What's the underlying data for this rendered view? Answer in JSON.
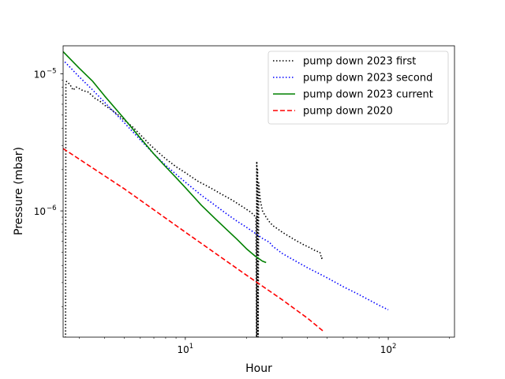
{
  "chart_data": {
    "type": "line",
    "title": "",
    "xlabel": "Hour",
    "ylabel": "Pressure (mbar)",
    "xscale": "log",
    "yscale": "log",
    "xlim": [
      2.5,
      212
    ],
    "ylim": [
      1.2e-07,
      1.6e-05
    ],
    "grid": false,
    "legend_position": "top-right",
    "x_ticks": [
      {
        "value": 10,
        "base": "10",
        "exp": "1"
      },
      {
        "value": 100,
        "base": "10",
        "exp": "2"
      }
    ],
    "y_ticks": [
      {
        "value": 1e-06,
        "base": "10",
        "exp": "−6"
      },
      {
        "value": 1e-05,
        "base": "10",
        "exp": "−5"
      }
    ],
    "series": [
      {
        "name": "pump down 2023 first",
        "color": "#000000",
        "style": "dotted",
        "x": [
          2.55,
          2.57,
          2.58,
          2.6,
          2.65,
          2.72,
          2.8,
          2.9,
          3.0,
          3.15,
          3.3,
          3.45,
          3.6,
          3.8,
          4.0,
          4.3,
          4.6,
          5.0,
          5.5,
          6.0,
          6.6,
          7.3,
          8.0,
          9.0,
          10.0,
          11.5,
          13.0,
          15.0,
          17.0,
          19.0,
          21.0,
          22.3,
          22.45,
          22.5,
          22.6,
          22.7,
          22.85,
          23.0,
          23.4,
          24.0,
          25.0,
          26.0,
          27.0,
          28.5,
          30.0,
          32.0,
          35.0,
          38.0,
          41.0,
          44.0,
          46.0,
          47.0,
          47.5
        ],
        "y": [
          1.2e-07,
          1.2e-07,
          8.5e-06,
          8.8e-06,
          8.6e-06,
          8.2e-06,
          7.6e-06,
          8e-06,
          7.8e-06,
          7.5e-06,
          7.4e-06,
          7e-06,
          6.6e-06,
          6.3e-06,
          5.9e-06,
          5.5e-06,
          5.1e-06,
          4.6e-06,
          4.1e-06,
          3.6e-06,
          3.1e-06,
          2.7e-06,
          2.4e-06,
          2.1e-06,
          1.9e-06,
          1.65e-06,
          1.5e-06,
          1.33e-06,
          1.2e-06,
          1.08e-06,
          9.8e-07,
          9e-07,
          1.2e-07,
          2.3e-06,
          1.2e-07,
          2e-06,
          1.2e-07,
          1.6e-06,
          1.2e-06,
          1e-06,
          9e-07,
          8.3e-07,
          7.8e-07,
          7.4e-07,
          7e-07,
          6.6e-07,
          6.1e-07,
          5.7e-07,
          5.4e-07,
          5.1e-07,
          5e-07,
          4.5e-07,
          4.6e-07
        ]
      },
      {
        "name": "pump down 2023 second",
        "color": "#0000ff",
        "style": "dotted",
        "x": [
          2.55,
          3.0,
          3.5,
          4.0,
          5.0,
          6.0,
          7.0,
          8.0,
          9.0,
          10.0,
          12.0,
          14.0,
          16.0,
          18.0,
          20.0,
          22.0,
          24.0,
          26.0,
          27.0,
          28.0,
          30.0,
          35.0,
          40.0,
          50.0,
          60.0,
          70.0,
          80.0,
          90.0,
          100.0
        ],
        "y": [
          1.22e-05,
          9.5e-06,
          7.6e-06,
          6.2e-06,
          4.4e-06,
          3.3e-06,
          2.6e-06,
          2.15e-06,
          1.85e-06,
          1.62e-06,
          1.3e-06,
          1.1e-06,
          9.5e-07,
          8.4e-07,
          7.6e-07,
          6.9e-07,
          6.3e-07,
          5.9e-07,
          5.5e-07,
          5.3e-07,
          4.9e-07,
          4.3e-07,
          3.85e-07,
          3.25e-07,
          2.8e-07,
          2.5e-07,
          2.25e-07,
          2.05e-07,
          1.9e-07
        ]
      },
      {
        "name": "pump down 2023 current",
        "color": "#008000",
        "style": "solid",
        "x": [
          2.5,
          3.0,
          3.5,
          4.0,
          5.0,
          6.0,
          7.0,
          8.0,
          9.0,
          10.0,
          12.0,
          14.0,
          16.0,
          18.0,
          20.0,
          22.0,
          24.0,
          25.0
        ],
        "y": [
          1.45e-05,
          1.1e-05,
          8.8e-06,
          6.9e-06,
          4.7e-06,
          3.4e-06,
          2.6e-06,
          2.1e-06,
          1.75e-06,
          1.48e-06,
          1.1e-06,
          8.8e-07,
          7.3e-07,
          6.2e-07,
          5.3e-07,
          4.7e-07,
          4.3e-07,
          4.2e-07
        ]
      },
      {
        "name": "pump down 2020",
        "color": "#ff0000",
        "style": "dashed",
        "x": [
          2.5,
          5.0,
          10.0,
          20.0,
          30.0,
          40.0,
          48.0
        ],
        "y": [
          2.85e-06,
          1.45e-06,
          7e-07,
          3.4e-07,
          2.25e-07,
          1.65e-07,
          1.32e-07
        ]
      }
    ]
  }
}
